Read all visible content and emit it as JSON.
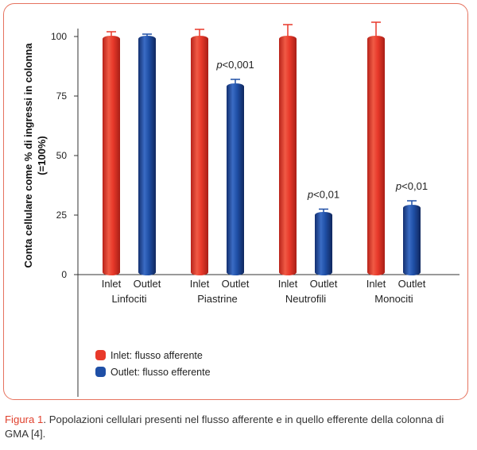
{
  "chart_data": {
    "type": "bar",
    "ylabel_lines": [
      "Conta cellulare come % di ingressi in colonna",
      "(=100%)"
    ],
    "ylim": [
      0,
      100
    ],
    "yticks": [
      0,
      25,
      50,
      75,
      100
    ],
    "groups": [
      {
        "name": "Linfociti",
        "bars": [
          {
            "label": "Inlet",
            "series": "Inlet",
            "value": 100,
            "err": 2
          },
          {
            "label": "Outlet",
            "series": "Outlet",
            "value": 100,
            "err": 1
          }
        ],
        "sig": ""
      },
      {
        "name": "Piastrine",
        "bars": [
          {
            "label": "Inlet",
            "series": "Inlet",
            "value": 100,
            "err": 3
          },
          {
            "label": "Outlet",
            "series": "Outlet",
            "value": 80,
            "err": 2
          }
        ],
        "sig": "<0,001"
      },
      {
        "name": "Neutrofili",
        "bars": [
          {
            "label": "Inlet",
            "series": "Inlet",
            "value": 100,
            "err": 5
          },
          {
            "label": "Outlet",
            "series": "Outlet",
            "value": 26,
            "err": 1.5
          }
        ],
        "sig": "<0,01"
      },
      {
        "name": "Monociti",
        "bars": [
          {
            "label": "Inlet",
            "series": "Inlet",
            "value": 100,
            "err": 6
          },
          {
            "label": "Outlet",
            "series": "Outlet",
            "value": 29,
            "err": 2
          }
        ],
        "sig": "<0,01"
      }
    ],
    "sig_prefix": "p",
    "legend": [
      {
        "key": "Inlet",
        "label": "Inlet: flusso afferente",
        "color": "#e8392a"
      },
      {
        "key": "Outlet",
        "label": "Outlet: flusso efferente",
        "color": "#1f4fa6"
      }
    ],
    "colors": {
      "Inlet": "#e8392a",
      "Outlet": "#1f4fa6"
    }
  },
  "caption": {
    "prefix": "Figura 1",
    "text": ". Popolazioni cellulari presenti nel flusso afferente e in quello efferente della colonna di GMA [4]."
  }
}
